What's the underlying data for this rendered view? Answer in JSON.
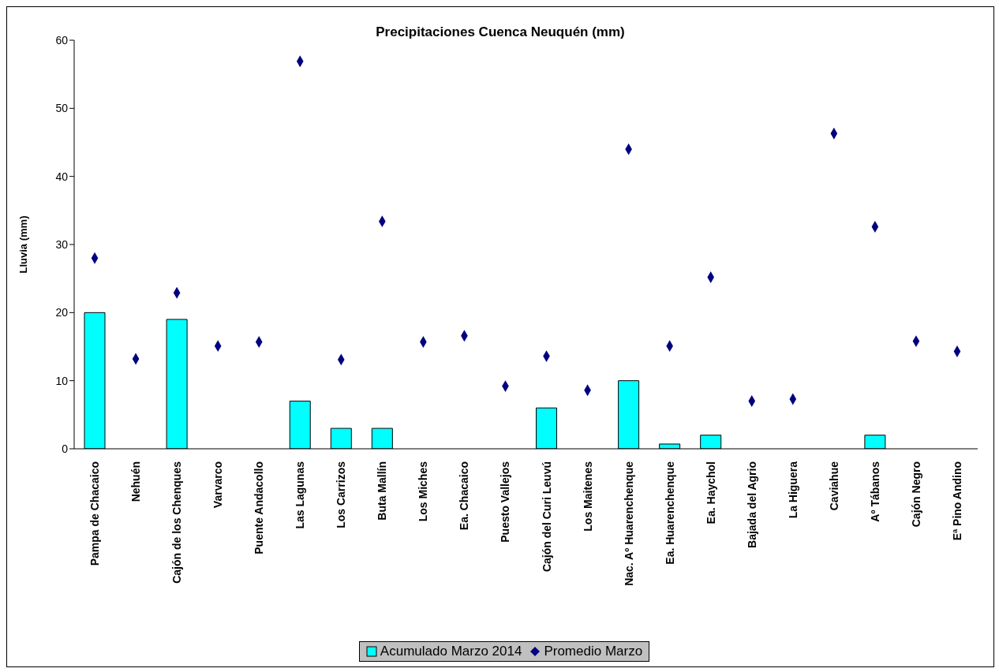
{
  "chart_data": {
    "type": "bar",
    "title": "Precipitaciones Cuenca Neuquén (mm)",
    "ylabel": "Lluvia (mm)",
    "categories": [
      "Pampa de Chacaico",
      "Nehuén",
      "Cajón de los Chenques",
      "Varvarco",
      "Puente Andacollo",
      "Las Lagunas",
      "Los Carrizos",
      "Buta Mallín",
      "Los Miches",
      "Ea. Chacaico",
      "Puesto Vallejos",
      "Cajón del Curi Leuvú",
      "Los Maitenes",
      "Nac. Aº Huarenchenque",
      "Ea. Huarenchenque",
      "Ea. Haychol",
      "Bajada del Agrio",
      "La Higuera",
      "Caviahue",
      "Aº Tábanos",
      "Cajón Negro",
      "Eª Pino Andino"
    ],
    "series": [
      {
        "name": "Acumulado Marzo 2014",
        "color": "#00ffff",
        "values": [
          20,
          0,
          19,
          0,
          0,
          7,
          3,
          3,
          0,
          0,
          0,
          6,
          0,
          10,
          0.7,
          2,
          0,
          0,
          0,
          2,
          0,
          0
        ]
      },
      {
        "name": "Promedio Marzo",
        "type": "scatter",
        "color": "#000080",
        "values": [
          28,
          13.2,
          22.9,
          15.1,
          15.7,
          56.9,
          13.1,
          33.4,
          15.7,
          16.6,
          9.2,
          13.6,
          8.6,
          44,
          15.1,
          25.2,
          7,
          7.3,
          46.3,
          32.6,
          15.8,
          14.3
        ]
      }
    ],
    "ylim": [
      0,
      60
    ],
    "yticks": [
      0,
      10,
      20,
      30,
      40,
      50,
      60
    ],
    "grid": false,
    "legend": "bottom",
    "marker": "diamond"
  }
}
